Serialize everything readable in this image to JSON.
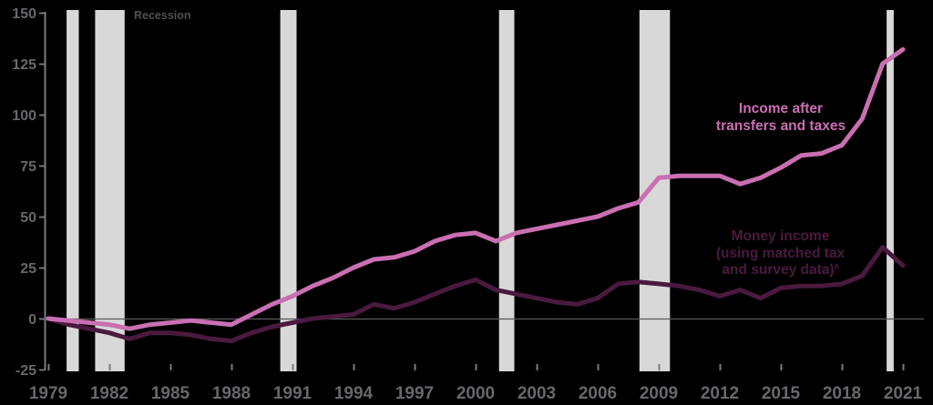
{
  "labels": {
    "recession": "Recession",
    "income_line1": "Income after",
    "income_line2": "transfers and taxes",
    "money_line1": "Money income",
    "money_line2": "(using matched tax",
    "money_line3": "and survey data)",
    "money_footnote": "a"
  },
  "colors": {
    "background": "#000000",
    "recession_band": "#d8d8d8",
    "axis": "#7a7b7e",
    "zero_line": "#595a5c",
    "tick_label": "#67686b",
    "recession_label": "#4d4e50",
    "income_series": "#c96fb2",
    "money_series": "#4a1a3e"
  },
  "chart_data": {
    "type": "line",
    "title": "",
    "xlabel": "",
    "ylabel": "",
    "ylim": [
      -25,
      150
    ],
    "yticks": [
      150,
      125,
      100,
      75,
      50,
      25,
      0,
      -25
    ],
    "xticks": [
      1979,
      1982,
      1985,
      1988,
      1991,
      1994,
      1997,
      2000,
      2003,
      2006,
      2009,
      2012,
      2015,
      2018,
      2021
    ],
    "grid": false,
    "zero_line": true,
    "legend_position": "inline-labels",
    "x": [
      1979,
      1980,
      1981,
      1982,
      1983,
      1984,
      1985,
      1986,
      1987,
      1988,
      1989,
      1990,
      1991,
      1992,
      1993,
      1994,
      1995,
      1996,
      1997,
      1998,
      1999,
      2000,
      2001,
      2002,
      2003,
      2004,
      2005,
      2006,
      2007,
      2008,
      2009,
      2010,
      2011,
      2012,
      2013,
      2014,
      2015,
      2016,
      2017,
      2018,
      2019,
      2020,
      2021
    ],
    "series": [
      {
        "name": "Income after transfers and taxes",
        "color": "#c96fb2",
        "values": [
          0,
          -1,
          -2,
          -3,
          -5,
          -3,
          -2,
          -1,
          -2,
          -3,
          2,
          7,
          11,
          16,
          20,
          25,
          29,
          30,
          33,
          38,
          41,
          42,
          38,
          42,
          44,
          46,
          48,
          50,
          54,
          57,
          69,
          70,
          70,
          70,
          66,
          69,
          74,
          80,
          81,
          85,
          98,
          125,
          132
        ]
      },
      {
        "name": "Money income (using matched tax and survey data)",
        "color": "#4a1a3e",
        "values": [
          0,
          -3,
          -5,
          -7,
          -10,
          -7,
          -7,
          -8,
          -10,
          -11,
          -7,
          -4,
          -2,
          0,
          1,
          2,
          7,
          5,
          8,
          12,
          16,
          19,
          14,
          12,
          10,
          8,
          7,
          10,
          17,
          18,
          17,
          16,
          14,
          11,
          14,
          10,
          15,
          16,
          16,
          17,
          21,
          35,
          26
        ]
      }
    ],
    "recessions": [
      [
        1979.9,
        1980.5
      ],
      [
        1981.3,
        1982.75
      ],
      [
        1990.4,
        1991.2
      ],
      [
        2001.15,
        2001.9
      ],
      [
        2008.05,
        2009.55
      ],
      [
        2020.2,
        2020.55
      ]
    ]
  }
}
